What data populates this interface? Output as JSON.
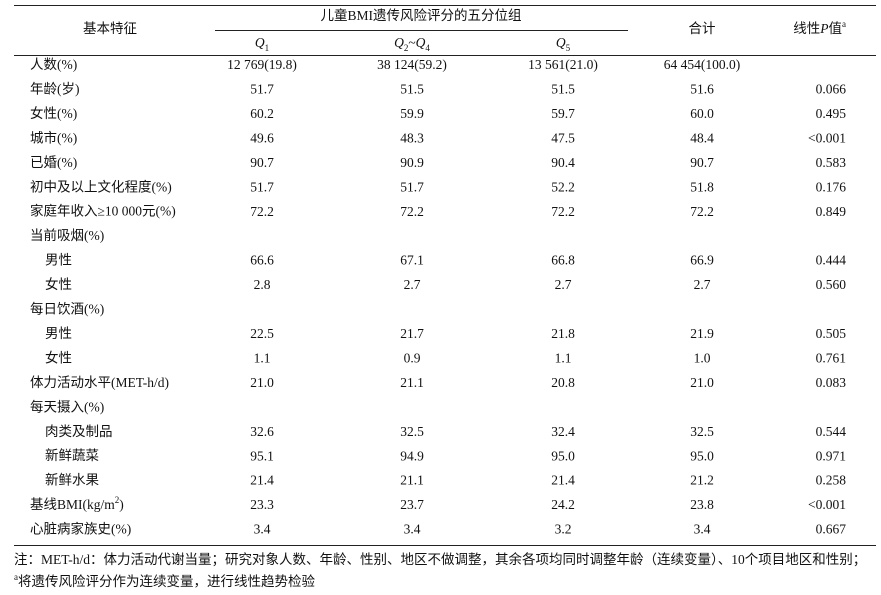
{
  "table": {
    "header": {
      "feature": "基本特征",
      "group": "儿童BMI遗传风险评分的五分位组",
      "quintiles": [
        [
          {
            "t": "Q",
            "s": "i"
          },
          {
            "t": "1",
            "s": "sub"
          }
        ],
        [
          {
            "t": "Q",
            "s": "i"
          },
          {
            "t": "2",
            "s": "sub"
          },
          {
            "t": "~"
          },
          {
            "t": "Q",
            "s": "i"
          },
          {
            "t": "4",
            "s": "sub"
          }
        ],
        [
          {
            "t": "Q",
            "s": "i"
          },
          {
            "t": "5",
            "s": "sub"
          }
        ]
      ],
      "total": "合计",
      "p_value": [
        {
          "t": "线性"
        },
        {
          "t": "P",
          "s": "i"
        },
        {
          "t": "值"
        },
        {
          "t": "a",
          "s": "sup"
        }
      ]
    },
    "rows": [
      {
        "label": [
          {
            "t": "人数(%)"
          }
        ],
        "cells": [
          "12 769(19.8)",
          "38 124(59.2)",
          "13 561(21.0)",
          "64 454(100.0)"
        ]
      },
      {
        "label": [
          {
            "t": "年龄(岁)"
          }
        ],
        "cells": [
          "51.7",
          "51.5",
          "51.5",
          "51.6",
          "0.066"
        ]
      },
      {
        "label": [
          {
            "t": "女性(%)"
          }
        ],
        "cells": [
          "60.2",
          "59.9",
          "59.7",
          "60.0",
          "0.495"
        ]
      },
      {
        "label": [
          {
            "t": "城市(%)"
          }
        ],
        "cells": [
          "49.6",
          "48.3",
          "47.5",
          "48.4",
          "<0.001"
        ]
      },
      {
        "label": [
          {
            "t": "已婚(%)"
          }
        ],
        "cells": [
          "90.7",
          "90.9",
          "90.4",
          "90.7",
          "0.583"
        ]
      },
      {
        "label": [
          {
            "t": "初中及以上文化程度(%)"
          }
        ],
        "cells": [
          "51.7",
          "51.7",
          "52.2",
          "51.8",
          "0.176"
        ]
      },
      {
        "label": [
          {
            "t": "家庭年收入≥10 000元(%)"
          }
        ],
        "cells": [
          "72.2",
          "72.2",
          "72.2",
          "72.2",
          "0.849"
        ]
      },
      {
        "label": [
          {
            "t": "当前吸烟(%)"
          }
        ],
        "children": [
          {
            "label": [
              {
                "t": "男性"
              }
            ],
            "cells": [
              "66.6",
              "67.1",
              "66.8",
              "66.9",
              "0.444"
            ]
          },
          {
            "label": [
              {
                "t": "女性"
              }
            ],
            "cells": [
              "2.8",
              "2.7",
              "2.7",
              "2.7",
              "0.560"
            ]
          }
        ]
      },
      {
        "label": [
          {
            "t": "每日饮酒(%)"
          }
        ],
        "children": [
          {
            "label": [
              {
                "t": "男性"
              }
            ],
            "cells": [
              "22.5",
              "21.7",
              "21.8",
              "21.9",
              "0.505"
            ]
          },
          {
            "label": [
              {
                "t": "女性"
              }
            ],
            "cells": [
              "1.1",
              "0.9",
              "1.1",
              "1.0",
              "0.761"
            ]
          }
        ]
      },
      {
        "label": [
          {
            "t": "体力活动水平(MET-h/d)"
          }
        ],
        "cells": [
          "21.0",
          "21.1",
          "20.8",
          "21.0",
          "0.083"
        ]
      },
      {
        "label": [
          {
            "t": "每天摄入(%)"
          }
        ],
        "children": [
          {
            "label": [
              {
                "t": "肉类及制品"
              }
            ],
            "cells": [
              "32.6",
              "32.5",
              "32.4",
              "32.5",
              "0.544"
            ]
          },
          {
            "label": [
              {
                "t": "新鲜蔬菜"
              }
            ],
            "cells": [
              "95.1",
              "94.9",
              "95.0",
              "95.0",
              "0.971"
            ]
          },
          {
            "label": [
              {
                "t": "新鲜水果"
              }
            ],
            "cells": [
              "21.4",
              "21.1",
              "21.4",
              "21.2",
              "0.258"
            ]
          }
        ]
      },
      {
        "label": [
          {
            "t": "基线BMI(kg/m"
          },
          {
            "t": "2",
            "s": "sup"
          },
          {
            "t": ")"
          }
        ],
        "cells": [
          "23.3",
          "23.7",
          "24.2",
          "23.8",
          "<0.001"
        ]
      },
      {
        "label": [
          {
            "t": "心脏病家族史(%)"
          }
        ],
        "cells": [
          "3.4",
          "3.4",
          "3.2",
          "3.4",
          "0.667"
        ]
      }
    ],
    "footnotes": [
      [
        {
          "t": "注：MET-h/d：体力活动代谢当量；研究对象人数、年龄、性别、地区不做调整，其余各项均同时调整年龄（连续变量）、10个项目地区和性别；"
        }
      ],
      [
        {
          "t": "a",
          "s": "sup"
        },
        {
          "t": "将遗传风险评分作为连续变量，进行线性趋势检验"
        }
      ]
    ]
  }
}
